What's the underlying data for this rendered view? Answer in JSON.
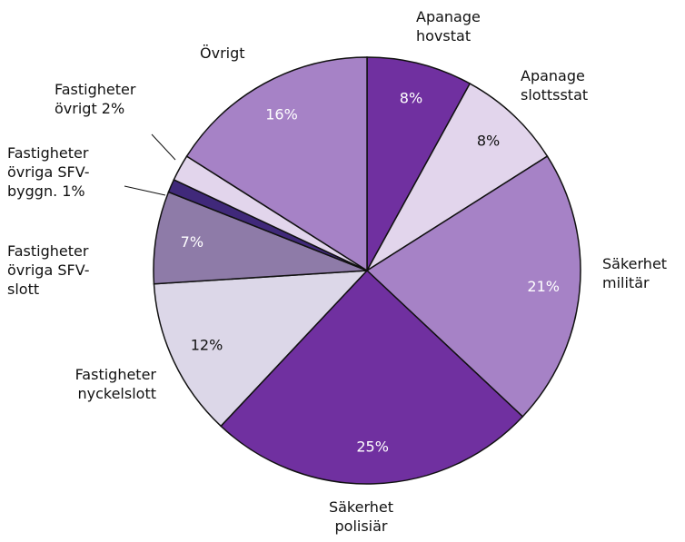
{
  "chart_data": {
    "type": "pie",
    "categories": [
      "Apanage hovstat",
      "Apanage slottsstat",
      "Säkerhet militär",
      "Säkerhet polisiär",
      "Fastigheter nyckelslott",
      "Fastigheter övriga SFV-slott",
      "Fastigheter övriga SFV-byggn. 1%",
      "Fastigheter övrigt 2%",
      "Övrigt"
    ],
    "values": [
      8,
      8,
      21,
      25,
      12,
      7,
      1,
      2,
      16
    ],
    "value_labels": [
      "8%",
      "8%",
      "21%",
      "25%",
      "12%",
      "7%",
      null,
      null,
      "16%"
    ],
    "colors": [
      "#7030a0",
      "#e2d5ec",
      "#a682c6",
      "#7030a0",
      "#dcd7e8",
      "#8e7ba8",
      "#40297a",
      "#e2d5ec",
      "#a682c6"
    ]
  }
}
